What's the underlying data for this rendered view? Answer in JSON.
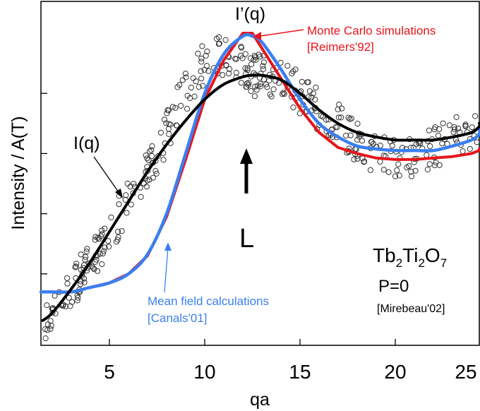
{
  "chart_data": {
    "type": "line",
    "xlabel": "qa",
    "ylabel": "Intensity / A(T)",
    "xlim": [
      1,
      26
    ],
    "ylim": [
      0,
      1
    ],
    "x_ticks": [
      "5",
      "10",
      "15",
      "20",
      "25"
    ],
    "x_tick_values": [
      5,
      10,
      15,
      20,
      25
    ],
    "y_tick_values": [
      0.2,
      0.4,
      0.6,
      0.8
    ],
    "grid": false,
    "series": [
      {
        "name": "I(q)",
        "color": "#000000",
        "x": [
          1.5,
          2,
          3,
          4,
          5,
          6,
          7,
          8,
          9,
          10,
          11,
          12,
          12.5,
          13,
          14,
          15,
          16,
          17,
          18,
          19,
          20,
          21,
          22,
          23,
          24,
          25,
          26
        ],
        "y": [
          0.045,
          0.07,
          0.15,
          0.24,
          0.34,
          0.44,
          0.54,
          0.63,
          0.71,
          0.78,
          0.83,
          0.855,
          0.86,
          0.86,
          0.845,
          0.8,
          0.745,
          0.7,
          0.67,
          0.655,
          0.645,
          0.645,
          0.645,
          0.655,
          0.67,
          0.69,
          0.7
        ]
      },
      {
        "name": "I'(q)",
        "color": "#e8141b",
        "x": [
          1,
          2,
          3,
          4,
          5,
          6,
          7,
          8,
          9,
          10,
          11,
          12,
          12.5,
          13,
          14,
          15,
          16,
          17,
          18,
          19,
          20,
          21,
          22,
          23,
          24,
          25,
          26
        ],
        "y": [
          0.14,
          0.14,
          0.14,
          0.155,
          0.17,
          0.2,
          0.26,
          0.39,
          0.58,
          0.78,
          0.91,
          1.0,
          1.0,
          0.95,
          0.85,
          0.75,
          0.67,
          0.62,
          0.6,
          0.585,
          0.58,
          0.58,
          0.585,
          0.59,
          0.6,
          0.61,
          0.615
        ]
      },
      {
        "name": "Mean field calculations",
        "color": "#3a7ff0",
        "x": [
          1,
          2,
          3,
          4,
          5,
          6,
          7,
          8,
          9,
          10,
          11,
          12,
          12.5,
          13,
          14,
          15,
          16,
          17,
          18,
          19,
          20,
          21,
          22,
          23,
          24,
          25,
          26
        ],
        "y": [
          0.14,
          0.14,
          0.14,
          0.155,
          0.17,
          0.2,
          0.265,
          0.4,
          0.6,
          0.8,
          0.93,
          0.99,
          0.99,
          0.97,
          0.88,
          0.78,
          0.7,
          0.655,
          0.625,
          0.615,
          0.61,
          0.61,
          0.61,
          0.625,
          0.645,
          0.665,
          0.68
        ]
      }
    ],
    "scatter_seed_note": "",
    "annotations": {
      "i_prime_label": "I’(q)",
      "i_label": "I(q)",
      "monte_carlo": [
        "Monte Carlo simulations",
        "[Reimers'92]"
      ],
      "mean_field": [
        "Mean field calculations",
        "[Canals'01]"
      ],
      "arrow_label": "L",
      "compound": {
        "base": [
          "Tb",
          "Ti",
          "O"
        ],
        "subs": [
          "2",
          "2",
          "7"
        ]
      },
      "pressure": "P=0",
      "reference": "[Mirebeau'02]"
    }
  },
  "colors": {
    "red": "#e8141b",
    "blue": "#3a7ff0",
    "black": "#000000",
    "marker": "#333333"
  }
}
